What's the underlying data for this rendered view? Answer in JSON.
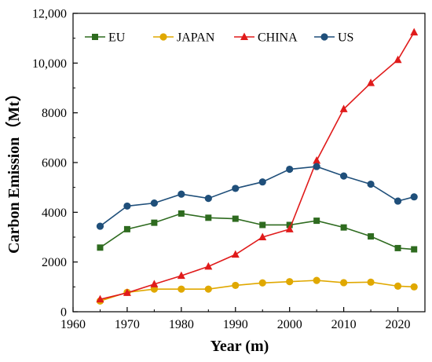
{
  "chart_data": {
    "type": "line",
    "title": "",
    "xlabel": "Year (m)",
    "ylabel": "Carbon Emission（Mt）",
    "xlim": [
      1960,
      2025
    ],
    "ylim": [
      0,
      12000
    ],
    "xticks": [
      1960,
      1970,
      1980,
      1990,
      2000,
      2010,
      2020
    ],
    "xtick_labels": [
      "1960",
      "1970",
      "1980",
      "1990",
      "2000",
      "2010",
      "2020"
    ],
    "yticks": [
      0,
      2000,
      4000,
      6000,
      8000,
      10000,
      12000
    ],
    "ytick_labels": [
      "0",
      "2000",
      "4000",
      "6000",
      "8000",
      "10,000",
      "12,000"
    ],
    "grid": false,
    "legend_position": "top",
    "series": [
      {
        "name": "EU",
        "color": "#2e6b1f",
        "marker": "square",
        "x": [
          1965,
          1970,
          1975,
          1980,
          1985,
          1990,
          1995,
          2000,
          2005,
          2010,
          2015,
          2020,
          2023
        ],
        "y": [
          2580,
          3320,
          3580,
          3950,
          3780,
          3740,
          3490,
          3490,
          3660,
          3390,
          3030,
          2560,
          2510
        ]
      },
      {
        "name": "JAPAN",
        "color": "#e0a800",
        "marker": "circle",
        "x": [
          1965,
          1970,
          1975,
          1980,
          1985,
          1990,
          1995,
          2000,
          2005,
          2010,
          2015,
          2020,
          2023
        ],
        "y": [
          430,
          780,
          910,
          910,
          910,
          1060,
          1160,
          1210,
          1260,
          1170,
          1190,
          1030,
          1000
        ]
      },
      {
        "name": "CHINA",
        "color": "#e01b1b",
        "marker": "triangle",
        "x": [
          1965,
          1970,
          1975,
          1980,
          1985,
          1990,
          1995,
          2000,
          2005,
          2010,
          2015,
          2020,
          2023
        ],
        "y": [
          500,
          760,
          1110,
          1450,
          1820,
          2300,
          3000,
          3320,
          6080,
          8150,
          9200,
          10130,
          11240
        ]
      },
      {
        "name": "US",
        "color": "#1f4f7a",
        "marker": "circle",
        "x": [
          1965,
          1970,
          1975,
          1980,
          1985,
          1990,
          1995,
          2000,
          2005,
          2010,
          2015,
          2020,
          2023
        ],
        "y": [
          3440,
          4250,
          4370,
          4730,
          4560,
          4960,
          5220,
          5730,
          5840,
          5460,
          5130,
          4450,
          4620
        ]
      }
    ]
  }
}
